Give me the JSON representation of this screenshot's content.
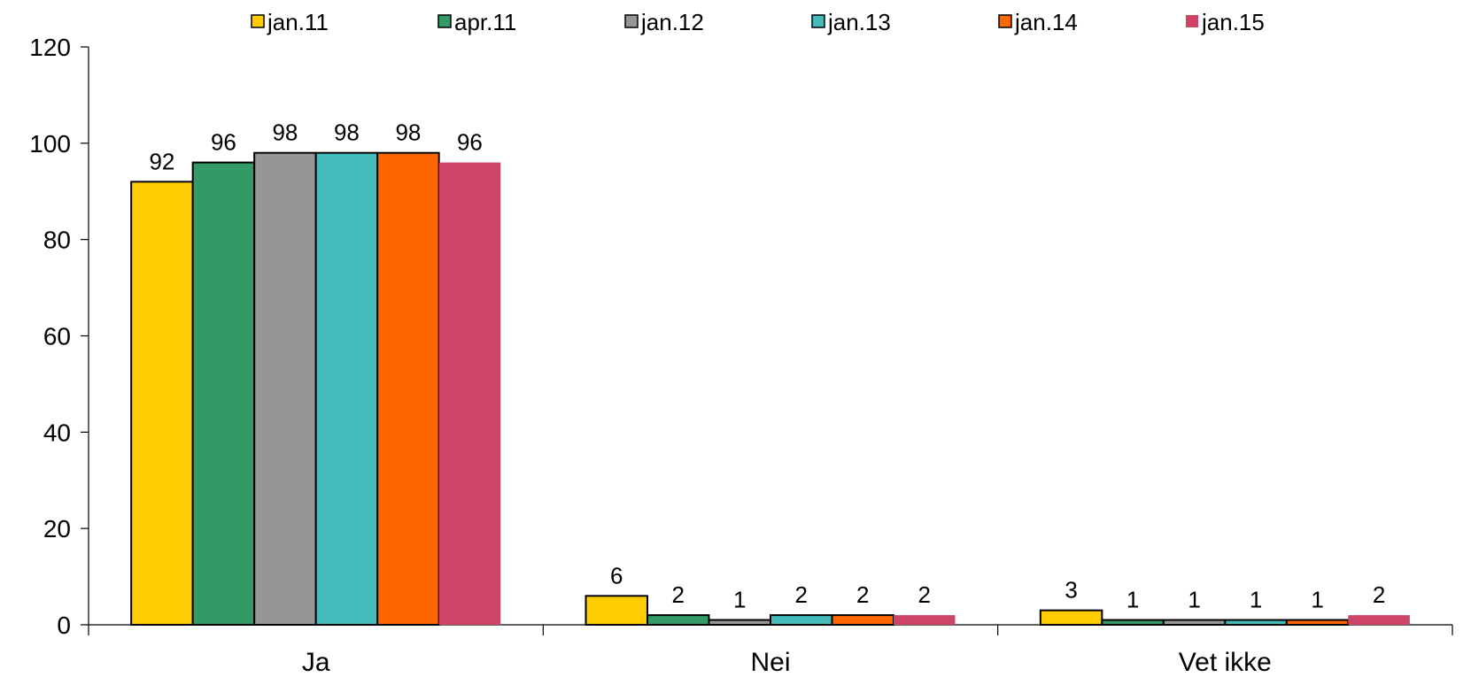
{
  "chart_data": {
    "type": "bar",
    "title": "",
    "xlabel": "",
    "ylabel": "",
    "categories": [
      "Ja",
      "Nei",
      "Vet ikke"
    ],
    "ylim": [
      0,
      120
    ],
    "yticks": [
      0,
      20,
      40,
      60,
      80,
      100,
      120
    ],
    "ytick_labels": [
      "0",
      "20",
      "40",
      "60",
      "80",
      "100",
      "120"
    ],
    "grid": false,
    "legend_position": "top",
    "series": [
      {
        "name": "jan.11",
        "values": [
          92,
          6,
          3
        ],
        "color": "#FFCC00"
      },
      {
        "name": "apr.11",
        "values": [
          96,
          2,
          1
        ],
        "color": "#339966"
      },
      {
        "name": "jan.12",
        "values": [
          98,
          1,
          1
        ],
        "color": "#969696"
      },
      {
        "name": "jan.13",
        "values": [
          98,
          2,
          1
        ],
        "color": "#44BBBB"
      },
      {
        "name": "jan.14",
        "values": [
          98,
          2,
          1
        ],
        "color": "#FF6600"
      },
      {
        "name": "jan.15",
        "values": [
          96,
          2,
          2
        ],
        "color": "#CC4466"
      }
    ]
  }
}
